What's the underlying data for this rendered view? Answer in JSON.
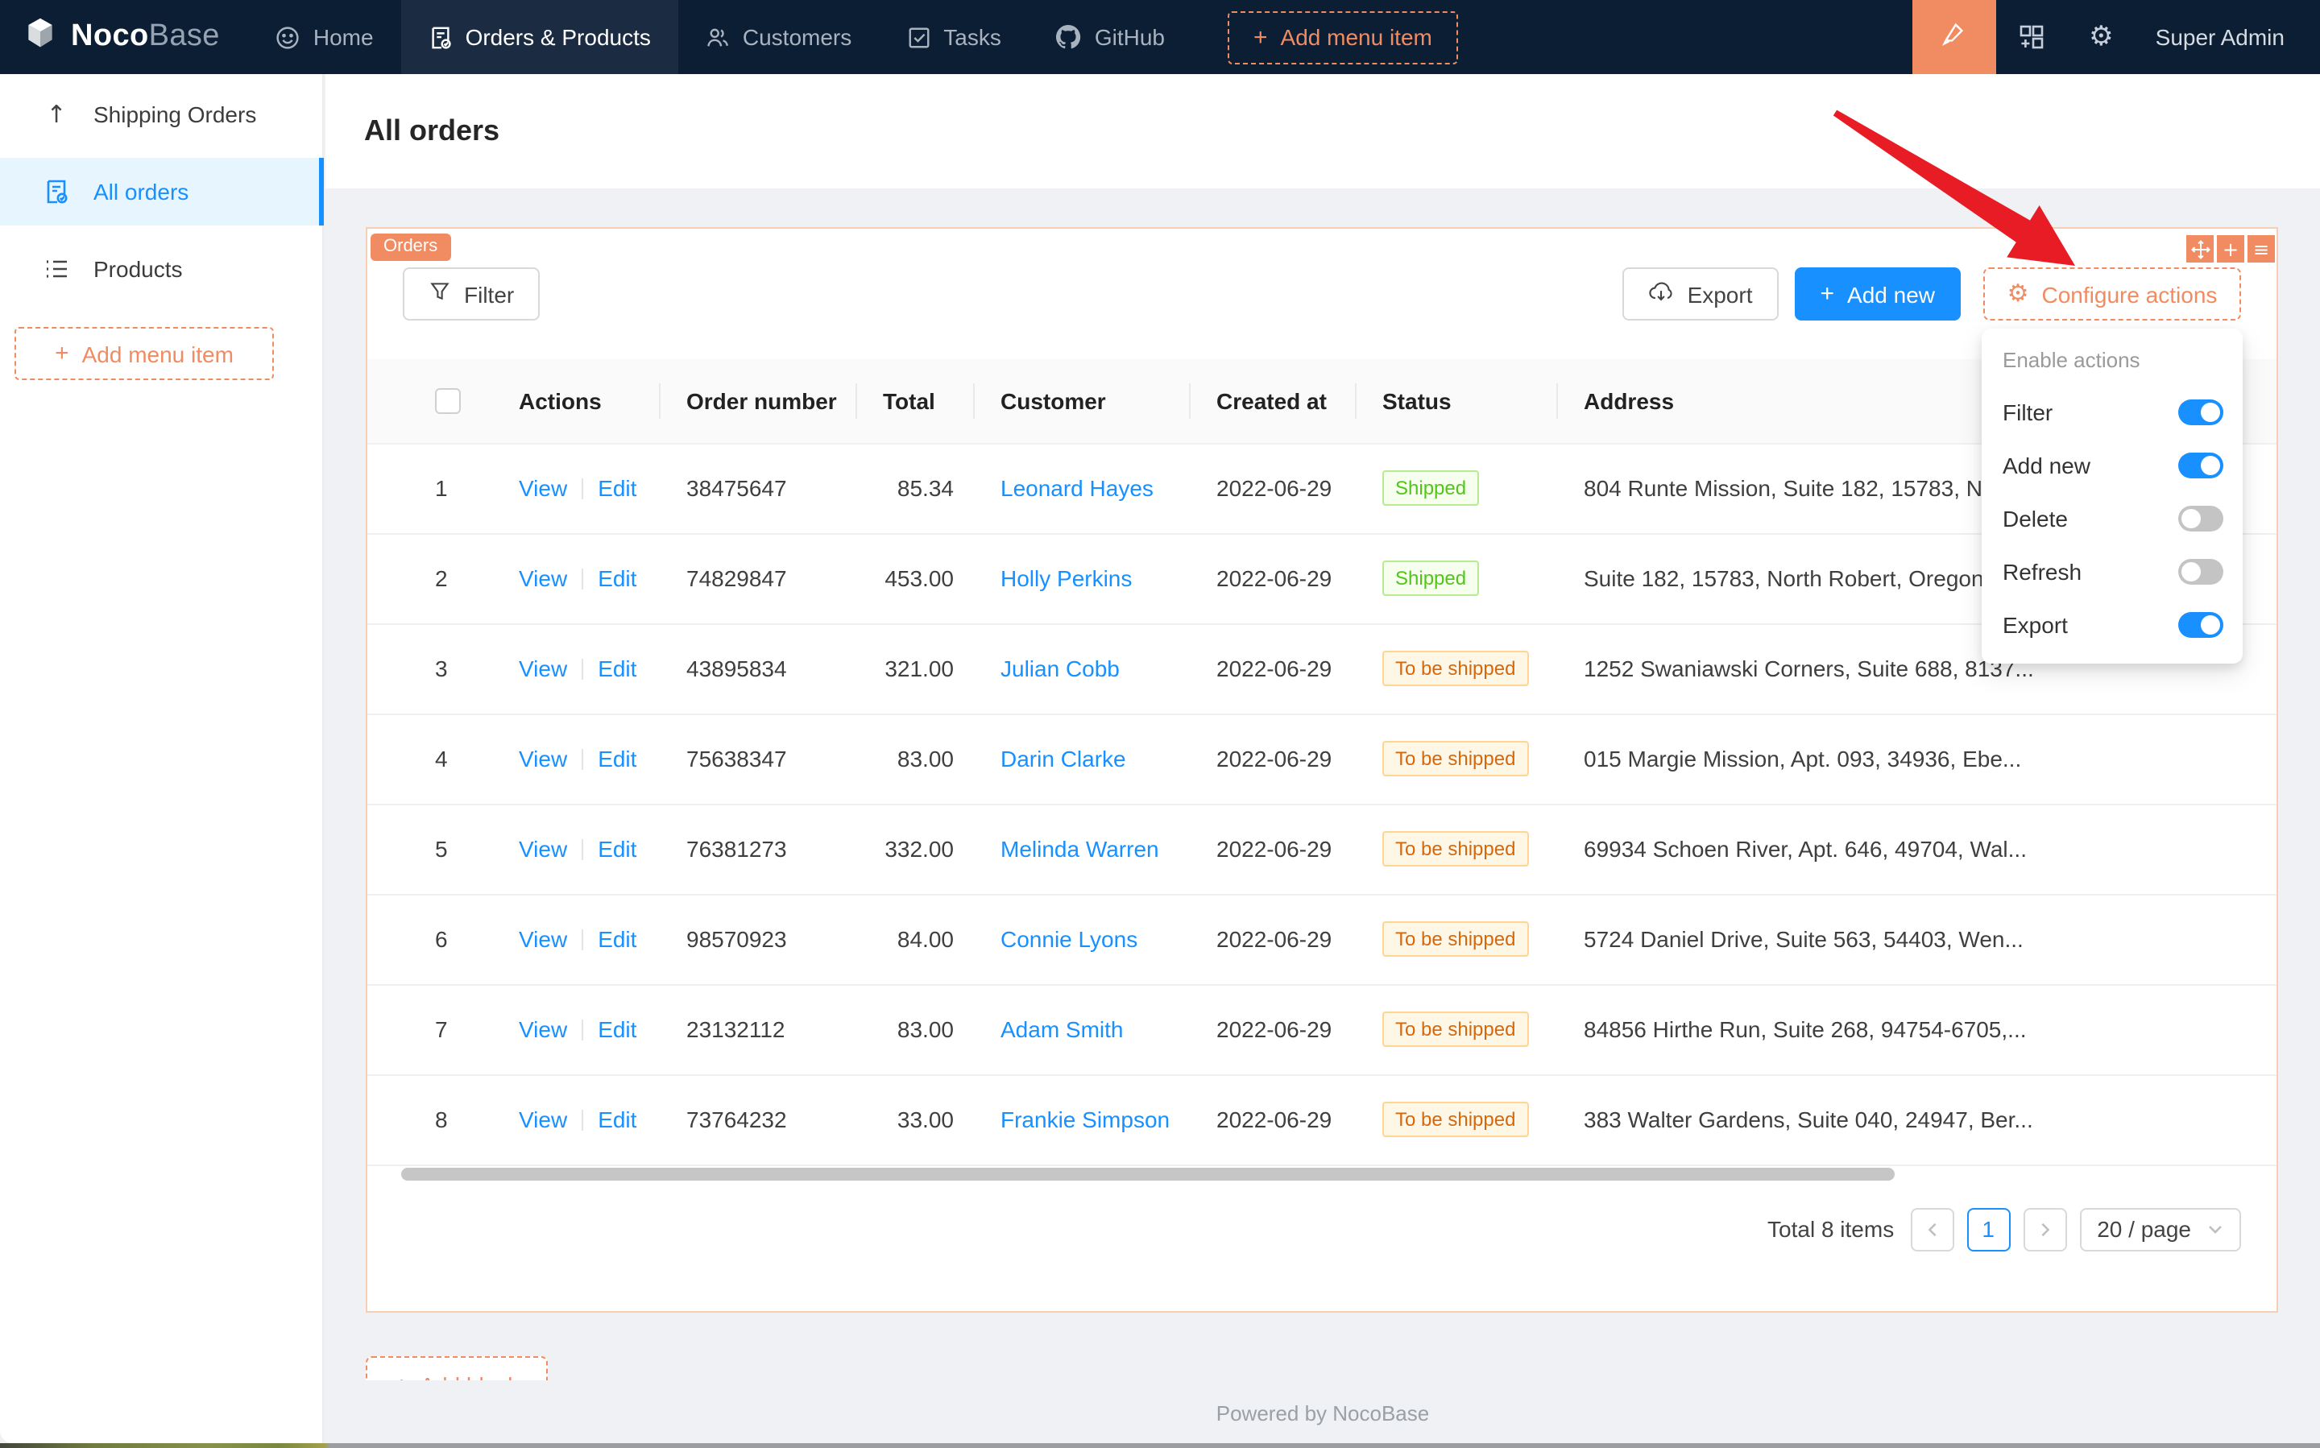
{
  "navbar": {
    "brand": {
      "noco": "Noco",
      "base": "Base"
    },
    "items": [
      {
        "label": "Home",
        "icon": "smiley-icon"
      },
      {
        "label": "Orders & Products",
        "icon": "file-done-icon",
        "active": true
      },
      {
        "label": "Customers",
        "icon": "team-icon"
      },
      {
        "label": "Tasks",
        "icon": "check-square-icon"
      },
      {
        "label": "GitHub",
        "icon": "github-icon"
      }
    ],
    "add_menu_item": "Add menu item",
    "user": "Super Admin",
    "right_icons": [
      "highlighter-icon",
      "plugin-blocks-icon",
      "gear-icon"
    ]
  },
  "sidebar": {
    "items": [
      {
        "label": "Shipping Orders",
        "icon": "arrow-up-icon",
        "active": false
      },
      {
        "label": "All orders",
        "icon": "file-done-icon",
        "active": true
      },
      {
        "label": "Products",
        "icon": "unordered-list-icon",
        "active": false
      }
    ],
    "add_menu_item": "Add menu item"
  },
  "page": {
    "title": "All orders",
    "footer": "Powered by NocoBase"
  },
  "block": {
    "tag": "Orders",
    "corner_icons": [
      "drag-icon",
      "plus-icon",
      "menu-icon"
    ],
    "toolbar": {
      "filter": "Filter",
      "export": "Export",
      "add_new": "Add new",
      "configure": "Configure actions"
    }
  },
  "dropdown": {
    "title": "Enable actions",
    "items": [
      {
        "label": "Filter",
        "enabled": true
      },
      {
        "label": "Add new",
        "enabled": true
      },
      {
        "label": "Delete",
        "enabled": false
      },
      {
        "label": "Refresh",
        "enabled": false
      },
      {
        "label": "Export",
        "enabled": true
      }
    ]
  },
  "table": {
    "headers": [
      "",
      "Actions",
      "Order number",
      "Total",
      "Customer",
      "Created at",
      "Status",
      "Address"
    ],
    "action_labels": [
      "View",
      "Edit"
    ],
    "rows": [
      {
        "index": "1",
        "order_number": "38475647",
        "total": "85.34",
        "customer": "Leonard Hayes",
        "created_at": "2022-06-29",
        "status": "Shipped",
        "status_type": "success",
        "address": "804 Runte Mission, Suite 182, 15783, No"
      },
      {
        "index": "2",
        "order_number": "74829847",
        "total": "453.00",
        "customer": "Holly Perkins",
        "created_at": "2022-06-29",
        "status": "Shipped",
        "status_type": "success",
        "address": "Suite 182, 15783, North Robert, Oregon"
      },
      {
        "index": "3",
        "order_number": "43895834",
        "total": "321.00",
        "customer": "Julian Cobb",
        "created_at": "2022-06-29",
        "status": "To be shipped",
        "status_type": "warning",
        "address": "1252 Swaniawski Corners, Suite 688, 8137..."
      },
      {
        "index": "4",
        "order_number": "75638347",
        "total": "83.00",
        "customer": "Darin Clarke",
        "created_at": "2022-06-29",
        "status": "To be shipped",
        "status_type": "warning",
        "address": "015 Margie Mission, Apt. 093, 34936, Ebe..."
      },
      {
        "index": "5",
        "order_number": "76381273",
        "total": "332.00",
        "customer": "Melinda Warren",
        "created_at": "2022-06-29",
        "status": "To be shipped",
        "status_type": "warning",
        "address": "69934 Schoen River, Apt. 646, 49704, Wal..."
      },
      {
        "index": "6",
        "order_number": "98570923",
        "total": "84.00",
        "customer": "Connie Lyons",
        "created_at": "2022-06-29",
        "status": "To be shipped",
        "status_type": "warning",
        "address": "5724 Daniel Drive, Suite 563, 54403, Wen..."
      },
      {
        "index": "7",
        "order_number": "23132112",
        "total": "83.00",
        "customer": "Adam Smith",
        "created_at": "2022-06-29",
        "status": "To be shipped",
        "status_type": "warning",
        "address": "84856 Hirthe Run, Suite 268, 94754-6705,..."
      },
      {
        "index": "8",
        "order_number": "73764232",
        "total": "33.00",
        "customer": "Frankie Simpson",
        "created_at": "2022-06-29",
        "status": "To be shipped",
        "status_type": "warning",
        "address": "383 Walter Gardens, Suite 040, 24947, Ber..."
      }
    ]
  },
  "pagination": {
    "total_text": "Total 8 items",
    "page": "1",
    "page_size": "20 / page"
  },
  "add_block_label": "Add block",
  "colors": {
    "navbar_bg": "#0c1e33",
    "designer_orange": "#f18b62",
    "primary_blue": "#1890ff",
    "success_green": "#52c41a",
    "warning_orange": "#d4680f",
    "page_bg": "#eff1f4",
    "arrow_red": "#e81c24"
  }
}
